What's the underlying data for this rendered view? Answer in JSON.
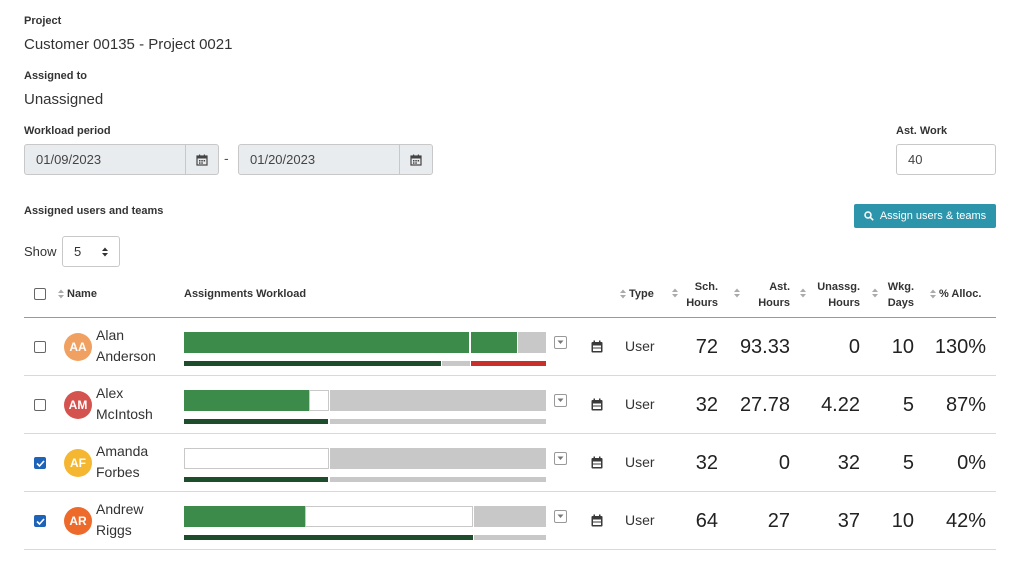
{
  "project": {
    "label": "Project",
    "value": "Customer 00135 - Project 0021"
  },
  "assigned_to": {
    "label": "Assigned to",
    "value": "Unassigned"
  },
  "workload_period": {
    "label": "Workload period",
    "start": "01/09/2023",
    "end": "01/20/2023",
    "separator": "-"
  },
  "ast_work": {
    "label": "Ast. Work",
    "value": "40"
  },
  "assigned_section": {
    "label": "Assigned users and teams",
    "button_label": "Assign users & teams",
    "button_icon": "search-icon",
    "button_color": "#2d95ab"
  },
  "show": {
    "label": "Show",
    "value": "5"
  },
  "columns": {
    "name": "Name",
    "workload": "Assignments Workload",
    "type": "Type",
    "sch_hours": [
      "Sch.",
      "Hours"
    ],
    "ast_hours": [
      "Ast.",
      "Hours"
    ],
    "unassg_hours": [
      "Unassg.",
      "Hours"
    ],
    "wkg_days": [
      "Wkg.",
      "Days"
    ],
    "alloc": "% Alloc."
  },
  "colors": {
    "scheduled": "#3d8b4a",
    "scheduled_dark": "#1e4d2b",
    "unavailable": "#c8c8c8",
    "overallocated": "#c9302c",
    "checkbox": "#1f63b8"
  },
  "rows": [
    {
      "initials": "AA",
      "first": "Alan",
      "last": "Anderson",
      "avatar_color": "#f0a060",
      "checked": false,
      "type": "User",
      "sch_hours": "72",
      "ast_hours": "93.33",
      "unassg_hours": "0",
      "wkg_days": "10",
      "alloc": "130%"
    },
    {
      "initials": "AM",
      "first": "Alex",
      "last": "McIntosh",
      "avatar_color": "#d4534f",
      "checked": false,
      "type": "User",
      "sch_hours": "32",
      "ast_hours": "27.78",
      "unassg_hours": "4.22",
      "wkg_days": "5",
      "alloc": "87%"
    },
    {
      "initials": "AF",
      "first": "Amanda",
      "last": "Forbes",
      "avatar_color": "#f5b731",
      "checked": true,
      "type": "User",
      "sch_hours": "32",
      "ast_hours": "0",
      "unassg_hours": "32",
      "wkg_days": "5",
      "alloc": "0%"
    },
    {
      "initials": "AR",
      "first": "Andrew",
      "last": "Riggs",
      "avatar_color": "#ee6a2b",
      "checked": true,
      "type": "User",
      "sch_hours": "64",
      "ast_hours": "27",
      "unassg_hours": "37",
      "wkg_days": "10",
      "alloc": "42%"
    }
  ]
}
